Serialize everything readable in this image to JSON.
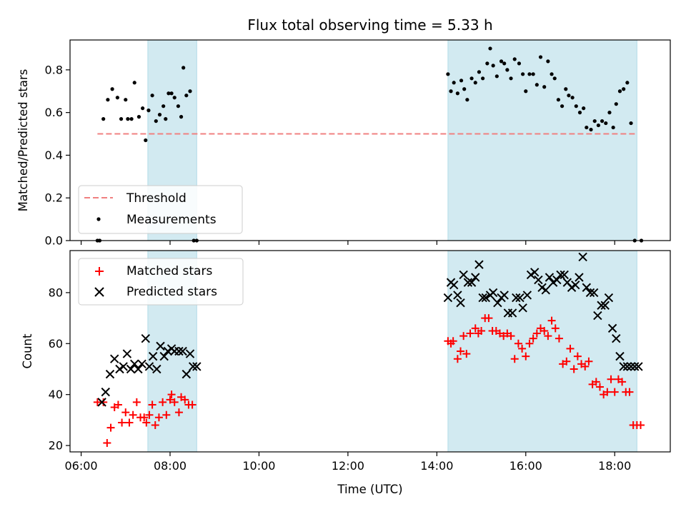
{
  "chart_data": [
    {
      "type": "scatter",
      "title": "Flux total observing time = 5.33 h",
      "xlabel": "",
      "ylabel": "Matched/Predicted stars",
      "ylim": [
        0,
        0.94
      ],
      "yticks": [
        0.0,
        0.2,
        0.4,
        0.6,
        0.8
      ],
      "ytick_labels": [
        "0.0",
        "0.2",
        "0.4",
        "0.6",
        "0.8"
      ],
      "xlim_hours": [
        5.75,
        19.25
      ],
      "xticks_hours": [
        6,
        8,
        10,
        12,
        14,
        16,
        18
      ],
      "grid": false,
      "legend_position": "lower-left",
      "shaded_spans": [
        [
          "07:30",
          "08:36"
        ],
        [
          "14:15",
          "18:30"
        ]
      ],
      "shade_color": "#add8e6",
      "threshold": {
        "name": "Threshold",
        "value": 0.5,
        "x_start": "06:22",
        "x_end": "18:30",
        "color": "#f08080",
        "style": "dashed"
      },
      "series": [
        {
          "name": "Measurements",
          "color": "#000000",
          "marker": "dot",
          "x": [
            "06:22",
            "06:25",
            "06:30",
            "06:36",
            "06:42",
            "06:49",
            "06:54",
            "07:00",
            "07:03",
            "07:08",
            "07:12",
            "07:18",
            "07:23",
            "07:27",
            "07:31",
            "07:36",
            "07:41",
            "07:46",
            "07:51",
            "07:54",
            "07:58",
            "08:02",
            "08:06",
            "08:11",
            "08:15",
            "08:18",
            "08:22",
            "08:27",
            "08:32",
            "08:36",
            "14:15",
            "14:19",
            "14:23",
            "14:28",
            "14:33",
            "14:37",
            "14:41",
            "14:47",
            "14:52",
            "14:57",
            "15:02",
            "15:08",
            "15:12",
            "15:16",
            "15:21",
            "15:27",
            "15:31",
            "15:35",
            "15:40",
            "15:45",
            "15:51",
            "15:56",
            "16:00",
            "16:05",
            "16:10",
            "16:15",
            "16:20",
            "16:25",
            "16:30",
            "16:35",
            "16:39",
            "16:44",
            "16:49",
            "16:54",
            "16:58",
            "17:03",
            "17:08",
            "17:13",
            "17:18",
            "17:22",
            "17:28",
            "17:33",
            "17:38",
            "17:43",
            "17:48",
            "17:53",
            "17:58",
            "18:02",
            "18:07",
            "18:12",
            "18:17",
            "18:22",
            "18:27",
            "18:36"
          ],
          "y": [
            0.0,
            0.0,
            0.57,
            0.66,
            0.71,
            0.67,
            0.57,
            0.66,
            0.57,
            0.57,
            0.74,
            0.58,
            0.62,
            0.47,
            0.61,
            0.68,
            0.56,
            0.59,
            0.63,
            0.57,
            0.69,
            0.69,
            0.67,
            0.63,
            0.58,
            0.81,
            0.68,
            0.7,
            0.0,
            0.0,
            0.78,
            0.7,
            0.74,
            0.69,
            0.75,
            0.71,
            0.66,
            0.76,
            0.74,
            0.79,
            0.76,
            0.83,
            0.9,
            0.82,
            0.77,
            0.84,
            0.83,
            0.8,
            0.76,
            0.85,
            0.83,
            0.78,
            0.7,
            0.78,
            0.78,
            0.73,
            0.86,
            0.72,
            0.84,
            0.78,
            0.76,
            0.66,
            0.63,
            0.71,
            0.68,
            0.67,
            0.63,
            0.6,
            0.62,
            0.53,
            0.52,
            0.56,
            0.54,
            0.56,
            0.55,
            0.6,
            0.53,
            0.64,
            0.7,
            0.71,
            0.74,
            0.55,
            0.0,
            0.0
          ]
        }
      ]
    },
    {
      "type": "scatter",
      "title": "",
      "xlabel": "Time (UTC)",
      "ylabel": "Count",
      "ylim": [
        17.5,
        96.5
      ],
      "yticks": [
        20,
        40,
        60,
        80
      ],
      "ytick_labels": [
        "20",
        "40",
        "60",
        "80"
      ],
      "xlim_hours": [
        5.75,
        19.25
      ],
      "xticks_hours": [
        6,
        8,
        10,
        12,
        14,
        16,
        18
      ],
      "xtick_labels": [
        "06:00",
        "08:00",
        "10:00",
        "12:00",
        "14:00",
        "16:00",
        "18:00"
      ],
      "grid": false,
      "legend_position": "top-left",
      "shaded_spans": [
        [
          "07:30",
          "08:36"
        ],
        [
          "14:15",
          "18:30"
        ]
      ],
      "shade_color": "#add8e6",
      "series": [
        {
          "name": "Matched stars",
          "color": "#ff0000",
          "marker": "plus",
          "x": [
            "06:22",
            "06:30",
            "06:35",
            "06:40",
            "06:45",
            "06:50",
            "06:55",
            "07:00",
            "07:05",
            "07:10",
            "07:15",
            "07:20",
            "07:25",
            "07:28",
            "07:32",
            "07:36",
            "07:40",
            "07:45",
            "07:50",
            "07:55",
            "08:00",
            "08:02",
            "08:06",
            "08:12",
            "08:15",
            "08:20",
            "08:25",
            "08:30",
            "14:15",
            "14:19",
            "14:22",
            "14:28",
            "14:32",
            "14:36",
            "14:40",
            "14:45",
            "14:52",
            "14:56",
            "15:00",
            "15:05",
            "15:10",
            "15:15",
            "15:20",
            "15:25",
            "15:30",
            "15:35",
            "15:40",
            "15:45",
            "15:50",
            "15:55",
            "16:00",
            "16:05",
            "16:10",
            "16:15",
            "16:20",
            "16:25",
            "16:30",
            "16:35",
            "16:40",
            "16:45",
            "16:50",
            "16:55",
            "17:00",
            "17:05",
            "17:10",
            "17:15",
            "17:20",
            "17:25",
            "17:30",
            "17:35",
            "17:40",
            "17:45",
            "17:50",
            "17:55",
            "18:00",
            "18:05",
            "18:10",
            "18:15",
            "18:20",
            "18:25",
            "18:30",
            "18:35"
          ],
          "y": [
            37,
            37,
            21,
            27,
            35,
            36,
            29,
            33,
            29,
            32,
            37,
            31,
            31,
            29,
            32,
            36,
            28,
            31,
            37,
            32,
            38,
            40,
            37,
            33,
            39,
            38,
            36,
            36,
            61,
            60,
            61,
            54,
            57,
            63,
            56,
            64,
            66,
            64,
            65,
            70,
            70,
            65,
            65,
            64,
            63,
            64,
            63,
            54,
            60,
            58,
            55,
            60,
            62,
            64,
            66,
            65,
            63,
            69,
            66,
            62,
            52,
            53,
            58,
            50,
            55,
            52,
            51,
            53,
            44,
            45,
            43,
            40,
            41,
            46,
            41,
            46,
            45,
            41,
            41,
            28,
            28,
            28
          ]
        },
        {
          "name": "Predicted stars",
          "color": "#000000",
          "marker": "x",
          "x": [
            "06:28",
            "06:33",
            "06:39",
            "06:45",
            "06:52",
            "06:57",
            "07:02",
            "07:07",
            "07:12",
            "07:17",
            "07:22",
            "07:27",
            "07:32",
            "07:37",
            "07:42",
            "07:47",
            "07:52",
            "07:57",
            "08:02",
            "08:06",
            "08:12",
            "08:17",
            "08:22",
            "08:27",
            "08:31",
            "08:36",
            "14:15",
            "14:19",
            "14:23",
            "14:28",
            "14:32",
            "14:36",
            "14:42",
            "14:47",
            "14:52",
            "14:57",
            "15:02",
            "15:06",
            "15:12",
            "15:16",
            "15:22",
            "15:27",
            "15:31",
            "15:36",
            "15:42",
            "15:47",
            "15:52",
            "15:56",
            "16:02",
            "16:07",
            "16:12",
            "16:17",
            "16:22",
            "16:27",
            "16:32",
            "16:37",
            "16:42",
            "16:47",
            "16:52",
            "16:56",
            "17:02",
            "17:07",
            "17:12",
            "17:17",
            "17:22",
            "17:27",
            "17:32",
            "17:37",
            "17:42",
            "17:47",
            "17:52",
            "17:57",
            "18:02",
            "18:07",
            "18:12",
            "18:17",
            "18:22",
            "18:27",
            "18:32"
          ],
          "y": [
            37,
            41,
            48,
            54,
            50,
            51,
            56,
            50,
            52,
            50,
            52,
            62,
            51,
            55,
            50,
            59,
            55,
            57,
            58,
            57,
            57,
            57,
            48,
            56,
            51,
            51,
            78,
            84,
            83,
            79,
            76,
            87,
            84,
            84,
            86,
            91,
            78,
            78,
            79,
            80,
            76,
            78,
            79,
            72,
            72,
            78,
            78,
            74,
            79,
            87,
            88,
            85,
            82,
            81,
            86,
            84,
            85,
            87,
            87,
            84,
            82,
            83,
            86,
            94,
            82,
            80,
            80,
            71,
            75,
            75,
            78,
            66,
            62,
            55,
            51,
            51,
            51,
            51,
            51
          ]
        }
      ]
    }
  ]
}
